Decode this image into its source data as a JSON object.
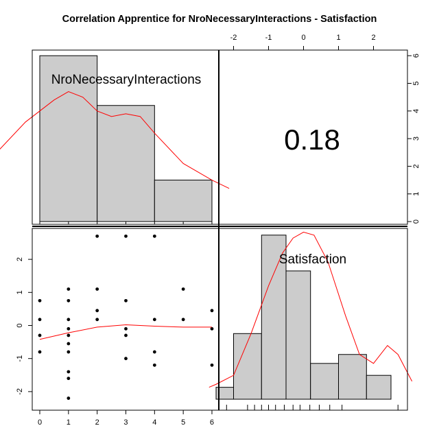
{
  "title": "Correlation Apprentice for NroNecessaryInteractions - Satisfaction",
  "chart_data": {
    "type": "pairs",
    "variables": [
      "NroNecessaryInteractions",
      "Satisfaction"
    ],
    "correlation": {
      "value": 0.18,
      "label": "0.18"
    },
    "x_ticks": [
      "0",
      "1",
      "2",
      "3",
      "4",
      "5",
      "6"
    ],
    "y_ticks": [
      "-2",
      "-1",
      "0",
      "1",
      "2"
    ],
    "top_ticks": [
      "-2",
      "-1",
      "0",
      "1",
      "2"
    ],
    "right_ticks": [
      "0",
      "1",
      "2",
      "3",
      "4",
      "5",
      "6"
    ],
    "nro_histogram": {
      "bins": [
        [
          0,
          2
        ],
        [
          2,
          4
        ],
        [
          4,
          6
        ]
      ],
      "counts": [
        6,
        4.2,
        1.5
      ],
      "density_curve": [
        [
          -1.5,
          2.5
        ],
        [
          -0.5,
          3.6
        ],
        [
          0.5,
          4.4
        ],
        [
          1,
          4.7
        ],
        [
          1.5,
          4.5
        ],
        [
          2,
          4.0
        ],
        [
          2.5,
          3.8
        ],
        [
          3,
          3.9
        ],
        [
          3.5,
          3.8
        ],
        [
          4,
          3.2
        ],
        [
          5,
          2.1
        ],
        [
          6,
          1.5
        ],
        [
          6.6,
          1.2
        ]
      ]
    },
    "sat_histogram": {
      "bins": [
        [
          -2.5,
          -2
        ],
        [
          -2,
          -1.2
        ],
        [
          -1.2,
          -0.5
        ],
        [
          -0.5,
          0.2
        ],
        [
          0.2,
          1
        ],
        [
          1,
          1.8
        ],
        [
          1.8,
          2.5
        ]
      ],
      "counts": [
        0.4,
        2.2,
        5.5,
        4.3,
        1.2,
        1.5,
        0.8
      ],
      "density_curve": [
        [
          -2.7,
          0.4
        ],
        [
          -2.5,
          0.5
        ],
        [
          -2,
          0.8
        ],
        [
          -1.5,
          2.2
        ],
        [
          -1,
          3.8
        ],
        [
          -0.6,
          4.9
        ],
        [
          -0.3,
          5.4
        ],
        [
          0,
          5.6
        ],
        [
          0.3,
          5.5
        ],
        [
          0.7,
          4.6
        ],
        [
          1.2,
          2.8
        ],
        [
          1.6,
          1.5
        ],
        [
          2,
          1.2
        ],
        [
          2.4,
          1.8
        ],
        [
          2.7,
          1.5
        ],
        [
          3.1,
          0.6
        ]
      ]
    },
    "scatter_points": [
      [
        0,
        0.75
      ],
      [
        0,
        0.18
      ],
      [
        0,
        -0.3
      ],
      [
        0,
        -0.8
      ],
      [
        1,
        1.1
      ],
      [
        1,
        0.75
      ],
      [
        1,
        0.18
      ],
      [
        1,
        -0.1
      ],
      [
        1,
        -0.3
      ],
      [
        1,
        -0.55
      ],
      [
        1,
        -0.8
      ],
      [
        1,
        -1.4
      ],
      [
        1,
        -1.6
      ],
      [
        1,
        -2.2
      ],
      [
        2,
        2.7
      ],
      [
        2,
        1.1
      ],
      [
        2,
        0.45
      ],
      [
        2,
        0.18
      ],
      [
        3,
        2.7
      ],
      [
        3,
        0.75
      ],
      [
        3,
        -0.1
      ],
      [
        3,
        -0.3
      ],
      [
        3,
        -1.0
      ],
      [
        4,
        2.7
      ],
      [
        4,
        0.18
      ],
      [
        4,
        -0.8
      ],
      [
        4,
        -1.2
      ],
      [
        5,
        1.1
      ],
      [
        5,
        0.18
      ],
      [
        6,
        0.45
      ],
      [
        6,
        -0.1
      ],
      [
        6,
        -1.2
      ]
    ],
    "lowess": [
      [
        0,
        -0.42
      ],
      [
        1,
        -0.22
      ],
      [
        2,
        -0.05
      ],
      [
        3,
        0.02
      ],
      [
        4,
        -0.02
      ],
      [
        5,
        -0.05
      ],
      [
        6,
        -0.05
      ]
    ],
    "rug": [
      -2.2,
      -1.6,
      -1.4,
      -1.2,
      -1.0,
      -0.8,
      -0.55,
      -0.3,
      -0.1,
      0.18,
      0.45,
      0.75,
      1.1,
      2.7
    ]
  }
}
